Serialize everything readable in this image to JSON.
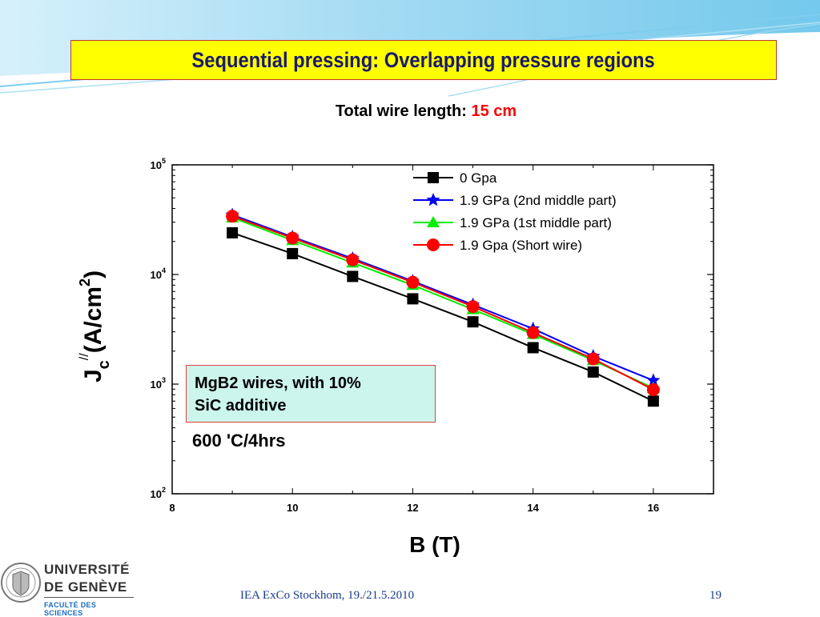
{
  "title": "Sequential pressing: Overlapping pressure regions",
  "subtitle": {
    "label": "Total wire length:",
    "value": "15 cm"
  },
  "info_box": {
    "line1": "MgB2 wires, with 10%",
    "line2": "SiC additive"
  },
  "condition": "600 'C/4hrs",
  "footer": {
    "text": "IEA ExCo Stockhom, 19./21.5.2010",
    "page": "19"
  },
  "logo": {
    "line1": "UNIVERSITÉ",
    "line2": "DE GENÈVE",
    "line3": "FACULTÉ DES SCIENCES"
  },
  "colors": {
    "title_bg": "#ffff00",
    "title_text": "#1a1a6e",
    "highlight": "#ff0000",
    "info_bg": "#ccf5ec",
    "footer_text": "#1a3c8c"
  },
  "chart_data": {
    "type": "line",
    "xlabel": "B (T)",
    "ylabel": {
      "main": "J",
      "sub": "c",
      "sup": "//",
      "unit": "(A/cm",
      "unit_sup": "2",
      "unit_end": ")"
    },
    "xlim": [
      8,
      17
    ],
    "ylim": [
      100,
      100000
    ],
    "yscale": "log",
    "x_ticks": [
      8,
      10,
      12,
      14,
      16
    ],
    "y_ticks": [
      {
        "value": 100,
        "base": "10",
        "exp": "2"
      },
      {
        "value": 1000,
        "base": "10",
        "exp": "3"
      },
      {
        "value": 10000,
        "base": "10",
        "exp": "4"
      },
      {
        "value": 100000,
        "base": "10",
        "exp": "5"
      }
    ],
    "legend_position": "top-right",
    "grid": false,
    "x": [
      9,
      10,
      11,
      12,
      13,
      14,
      15,
      16
    ],
    "series": [
      {
        "name": "0 Gpa",
        "color": "#000000",
        "marker": "square",
        "values": [
          24000,
          15500,
          9600,
          6000,
          3700,
          2150,
          1290,
          700
        ]
      },
      {
        "name": "1.9 GPa (2nd middle part)",
        "color": "#0000ee",
        "marker": "star",
        "values": [
          35000,
          22000,
          14000,
          8700,
          5300,
          3200,
          1800,
          1080
        ]
      },
      {
        "name": "1.9 GPa (1st middle part)",
        "color": "#00ee00",
        "marker": "triangle",
        "values": [
          33000,
          20500,
          12800,
          8000,
          4800,
          2850,
          1650,
          920
        ]
      },
      {
        "name": "1.9 Gpa (Short wire)",
        "color": "#ff0000",
        "marker": "circle",
        "values": [
          34000,
          21500,
          13600,
          8500,
          5100,
          2950,
          1700,
          890
        ]
      }
    ]
  }
}
